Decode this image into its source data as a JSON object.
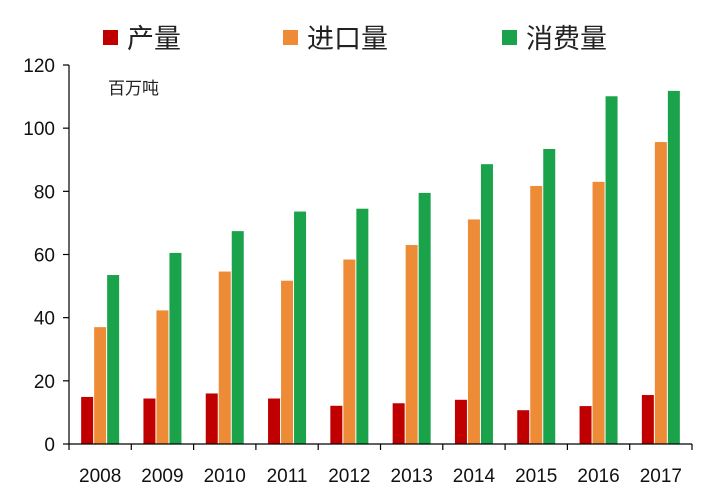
{
  "chart_data": {
    "type": "bar",
    "unit": "百万吨",
    "categories": [
      "2008",
      "2009",
      "2010",
      "2011",
      "2012",
      "2013",
      "2014",
      "2015",
      "2016",
      "2017"
    ],
    "series": [
      {
        "name": "产量",
        "color": "#c00000",
        "values": [
          14.9,
          14.4,
          16.0,
          14.4,
          12.1,
          12.9,
          14.0,
          10.7,
          12.0,
          15.5
        ]
      },
      {
        "name": "进口量",
        "color": "#ed8b36",
        "values": [
          37.0,
          42.3,
          54.6,
          51.7,
          58.4,
          63.0,
          71.1,
          81.7,
          83.0,
          95.6
        ]
      },
      {
        "name": "消费量",
        "color": "#1aa34a",
        "values": [
          53.5,
          60.5,
          67.4,
          73.6,
          74.5,
          79.5,
          88.6,
          93.4,
          110.1,
          111.8
        ]
      }
    ],
    "ylim": [
      0,
      120
    ],
    "yticks": [
      0,
      20,
      40,
      60,
      80,
      100,
      120
    ],
    "legend_position": "top",
    "grid": false
  }
}
